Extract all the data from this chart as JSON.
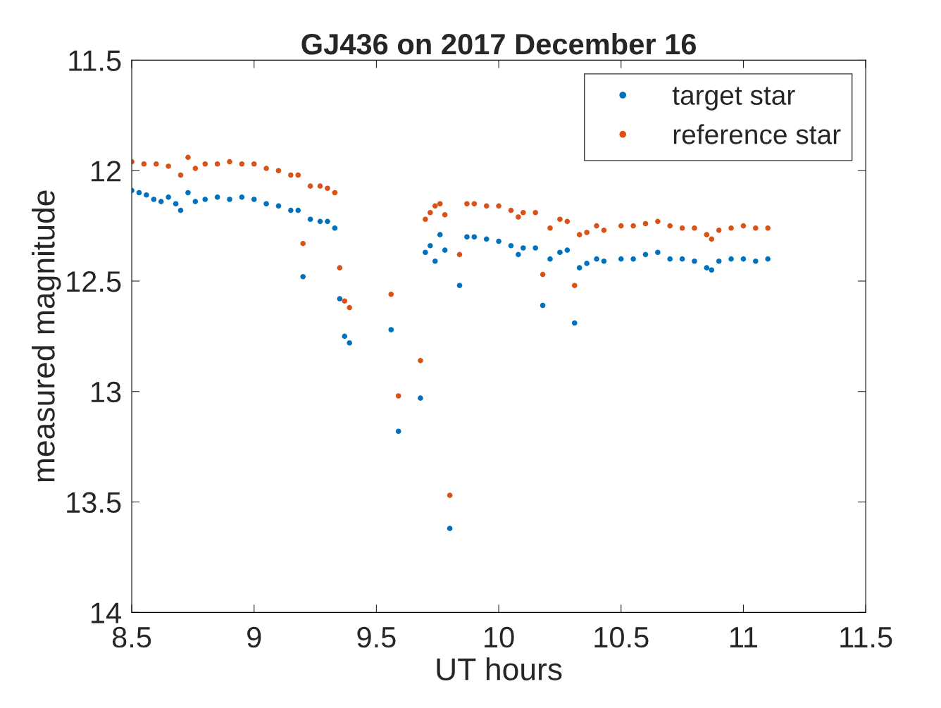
{
  "chart_data": {
    "type": "scatter",
    "title": "GJ436 on 2017 December 16",
    "xlabel": "UT hours",
    "ylabel": "measured magnitude",
    "xlim": [
      8.5,
      11.5
    ],
    "xticks": [
      8.5,
      9,
      9.5,
      10,
      10.5,
      11,
      11.5
    ],
    "ylim": [
      14,
      11.5
    ],
    "yticks": [
      11.5,
      12,
      12.5,
      13,
      13.5,
      14
    ],
    "grid": false,
    "legend": "top right",
    "marker": "circle",
    "series": [
      {
        "name": "target star",
        "color": "#0072bd",
        "x": [
          8.5,
          8.53,
          8.56,
          8.59,
          8.62,
          8.65,
          8.68,
          8.7,
          8.73,
          8.76,
          8.8,
          8.85,
          8.9,
          8.95,
          9.0,
          9.05,
          9.1,
          9.15,
          9.18,
          9.2,
          9.23,
          9.27,
          9.3,
          9.33,
          9.35,
          9.37,
          9.39,
          9.56,
          9.59,
          9.68,
          9.7,
          9.72,
          9.74,
          9.76,
          9.78,
          9.8,
          9.84,
          9.87,
          9.9,
          9.95,
          10.0,
          10.05,
          10.08,
          10.1,
          10.15,
          10.18,
          10.21,
          10.25,
          10.28,
          10.31,
          10.33,
          10.36,
          10.4,
          10.43,
          10.5,
          10.55,
          10.6,
          10.65,
          10.7,
          10.75,
          10.8,
          10.85,
          10.87,
          10.9,
          10.95,
          11.0,
          11.05,
          11.1
        ],
        "values": [
          12.09,
          12.1,
          12.11,
          12.13,
          12.14,
          12.12,
          12.15,
          12.18,
          12.1,
          12.14,
          12.13,
          12.12,
          12.13,
          12.12,
          12.13,
          12.15,
          12.16,
          12.18,
          12.18,
          12.48,
          12.22,
          12.23,
          12.23,
          12.26,
          12.58,
          12.75,
          12.78,
          12.72,
          13.18,
          13.03,
          12.37,
          12.34,
          12.41,
          12.29,
          12.36,
          13.62,
          12.52,
          12.3,
          12.3,
          12.31,
          12.32,
          12.34,
          12.38,
          12.35,
          12.35,
          12.61,
          12.4,
          12.37,
          12.36,
          12.69,
          12.44,
          12.42,
          12.4,
          12.41,
          12.4,
          12.4,
          12.38,
          12.37,
          12.4,
          12.4,
          12.41,
          12.44,
          12.45,
          12.41,
          12.4,
          12.4,
          12.41,
          12.4
        ]
      },
      {
        "name": "reference star",
        "color": "#d95319",
        "x": [
          8.5,
          8.55,
          8.6,
          8.65,
          8.7,
          8.73,
          8.76,
          8.8,
          8.85,
          8.9,
          8.95,
          9.0,
          9.05,
          9.1,
          9.15,
          9.18,
          9.2,
          9.23,
          9.27,
          9.3,
          9.33,
          9.35,
          9.37,
          9.39,
          9.56,
          9.59,
          9.68,
          9.7,
          9.72,
          9.74,
          9.76,
          9.78,
          9.8,
          9.84,
          9.87,
          9.9,
          9.95,
          10.0,
          10.05,
          10.08,
          10.1,
          10.15,
          10.18,
          10.21,
          10.25,
          10.28,
          10.31,
          10.33,
          10.36,
          10.4,
          10.43,
          10.5,
          10.55,
          10.6,
          10.65,
          10.7,
          10.75,
          10.8,
          10.85,
          10.87,
          10.9,
          10.95,
          11.0,
          11.05,
          11.1
        ],
        "values": [
          11.96,
          11.97,
          11.97,
          11.98,
          12.02,
          11.94,
          11.99,
          11.97,
          11.97,
          11.96,
          11.97,
          11.97,
          11.99,
          12.0,
          12.02,
          12.02,
          12.33,
          12.07,
          12.07,
          12.08,
          12.1,
          12.44,
          12.59,
          12.62,
          12.56,
          13.02,
          12.86,
          12.22,
          12.19,
          12.16,
          12.15,
          12.2,
          13.47,
          12.38,
          12.15,
          12.15,
          12.16,
          12.16,
          12.18,
          12.21,
          12.19,
          12.19,
          12.47,
          12.26,
          12.22,
          12.23,
          12.52,
          12.29,
          12.28,
          12.25,
          12.27,
          12.25,
          12.25,
          12.24,
          12.23,
          12.25,
          12.26,
          12.26,
          12.29,
          12.31,
          12.27,
          12.26,
          12.25,
          12.26,
          12.26
        ]
      }
    ]
  }
}
